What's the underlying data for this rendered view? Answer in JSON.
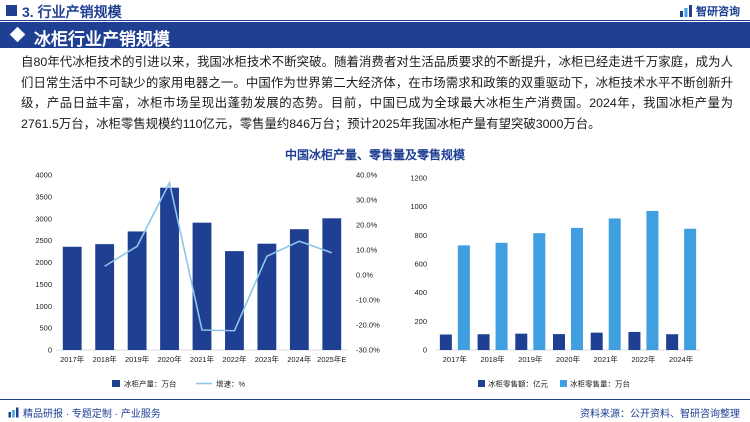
{
  "header": {
    "title": "3. 行业产销规模",
    "brand": "智研咨询"
  },
  "section": {
    "title": "冰柜行业产销规模"
  },
  "intro": "自80年代冰柜技术的引进以来，我国冰柜技术不断突破。随着消费者对生活品质要求的不断提升，冰柜已经走进千万家庭，成为人们日常生活中不可缺少的家用电器之一。中国作为世界第二大经济体，在市场需求和政策的双重驱动下，冰柜技术水平不断创新升级，产品日益丰富，冰柜市场呈现出蓬勃发展的态势。目前，中国已成为全球最大冰柜生产消费国。2024年，我国冰柜产量为2761.5万台，冰柜零售规模约110亿元，零售量约846万台；预计2025年我国冰柜产量有望突破3000万台。",
  "chart_title": "中国冰柜产量、零售量及零售规模",
  "colors": {
    "dark_blue": "#1f3f93",
    "light_blue": "#3f9fe0",
    "growth_line": "#8fc5ea"
  },
  "chart_data": [
    {
      "type": "bar+line",
      "categories": [
        "2017年",
        "2018年",
        "2019年",
        "2020年",
        "2021年",
        "2022年",
        "2023年",
        "2024年",
        "2025年E"
      ],
      "series": [
        {
          "name": "冰柜产量：万台",
          "kind": "bar",
          "axis": "left",
          "values": [
            2360,
            2420,
            2710,
            3710,
            2910,
            2260,
            2430,
            2761.5,
            3010
          ]
        },
        {
          "name": "增速：%",
          "kind": "line",
          "axis": "right",
          "values": [
            null,
            3.5,
            11.5,
            36.9,
            -22,
            -22.3,
            7.5,
            13.5,
            8.9
          ]
        }
      ],
      "y_left": {
        "min": 0,
        "max": 4000,
        "ticks": [
          "0",
          "500",
          "1000",
          "1500",
          "2000",
          "2500",
          "3000",
          "3500",
          "4000"
        ]
      },
      "y_right": {
        "min": -30,
        "max": 40,
        "ticks": [
          "-30.0%",
          "-20.0%",
          "-10.0%",
          "0.0%",
          "10.0%",
          "20.0%",
          "30.0%",
          "40.0%"
        ]
      },
      "legend": [
        "冰柜产量：万台",
        "增速：%"
      ],
      "legend_position": "bottom"
    },
    {
      "type": "bar",
      "categories": [
        "2017年",
        "2018年",
        "2019年",
        "2020年",
        "2021年",
        "2022年",
        "2024年"
      ],
      "series": [
        {
          "name": "冰柜零售额：亿元",
          "values": [
            108,
            110,
            114,
            111,
            121,
            126,
            110
          ]
        },
        {
          "name": "冰柜零售量：万台",
          "values": [
            730,
            748,
            815,
            852,
            918,
            970,
            846
          ]
        }
      ],
      "y_left": {
        "min": 0,
        "max": 1200,
        "ticks": [
          "0",
          "200",
          "400",
          "600",
          "800",
          "1000",
          "1200"
        ]
      },
      "legend": [
        "冰柜零售额：亿元",
        "冰柜零售量：万台"
      ],
      "legend_position": "bottom"
    }
  ],
  "footer": {
    "left": "精品研报 · 专题定制 · 产业服务",
    "source": "资料来源：公开资料、智研咨询整理"
  }
}
